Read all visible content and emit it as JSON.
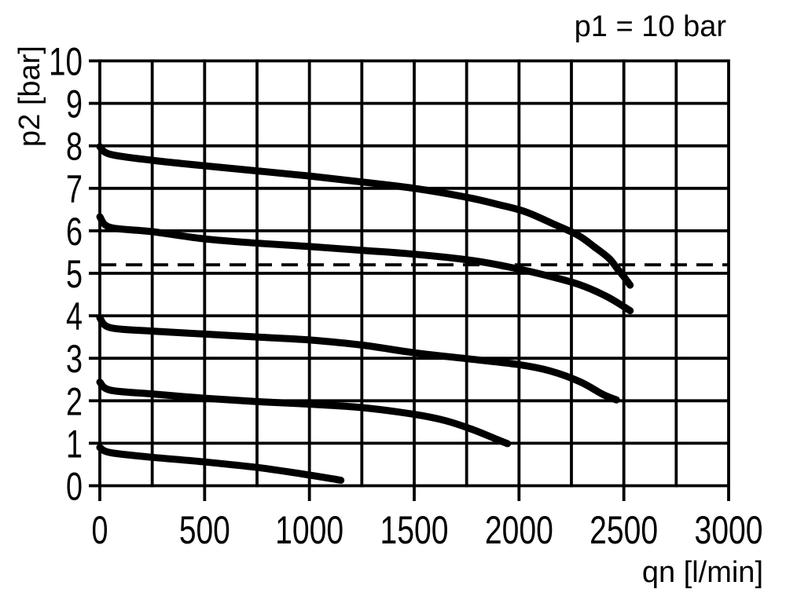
{
  "figure": {
    "background": "#ffffff",
    "ink_color": "#000000"
  },
  "chart_data": {
    "type": "line",
    "title": "p1 = 10 bar",
    "xlabel": "qn [l/min]",
    "ylabel": "p2 [bar]",
    "xlim": [
      0,
      3000
    ],
    "ylim": [
      0,
      10
    ],
    "x_tick_values": [
      0,
      500,
      1000,
      1500,
      2000,
      2500,
      3000
    ],
    "y_tick_values": [
      0,
      1,
      2,
      3,
      4,
      5,
      6,
      7,
      8,
      9,
      10
    ],
    "x_gridline_step": 250,
    "y_gridline_step": 1,
    "grid": "on",
    "legend": "none",
    "curve_color": "#000000",
    "reference_line": {
      "type": "horizontal-dashed",
      "p2_bar": 5.2,
      "x_from": 0,
      "x_to": 3000
    },
    "series": [
      {
        "name": "curve-setting-8-bar",
        "points": [
          [
            0,
            7.98
          ],
          [
            50,
            7.8
          ],
          [
            250,
            7.66
          ],
          [
            500,
            7.53
          ],
          [
            750,
            7.41
          ],
          [
            1000,
            7.29
          ],
          [
            1250,
            7.15
          ],
          [
            1500,
            7.0
          ],
          [
            1750,
            6.79
          ],
          [
            1900,
            6.62
          ],
          [
            2030,
            6.45
          ],
          [
            2160,
            6.17
          ],
          [
            2280,
            5.9
          ],
          [
            2360,
            5.62
          ],
          [
            2430,
            5.35
          ],
          [
            2470,
            5.1
          ],
          [
            2500,
            4.92
          ],
          [
            2530,
            4.72
          ]
        ]
      },
      {
        "name": "curve-setting-6-bar",
        "points": [
          [
            0,
            6.33
          ],
          [
            50,
            6.08
          ],
          [
            250,
            5.98
          ],
          [
            500,
            5.81
          ],
          [
            750,
            5.71
          ],
          [
            1000,
            5.63
          ],
          [
            1250,
            5.54
          ],
          [
            1500,
            5.45
          ],
          [
            1780,
            5.3
          ],
          [
            1980,
            5.12
          ],
          [
            2130,
            4.95
          ],
          [
            2290,
            4.73
          ],
          [
            2420,
            4.45
          ],
          [
            2530,
            4.12
          ]
        ]
      },
      {
        "name": "curve-setting-4-bar",
        "points": [
          [
            0,
            3.95
          ],
          [
            50,
            3.72
          ],
          [
            250,
            3.64
          ],
          [
            500,
            3.57
          ],
          [
            750,
            3.5
          ],
          [
            1000,
            3.43
          ],
          [
            1250,
            3.31
          ],
          [
            1500,
            3.13
          ],
          [
            1750,
            2.99
          ],
          [
            2000,
            2.85
          ],
          [
            2150,
            2.7
          ],
          [
            2290,
            2.45
          ],
          [
            2400,
            2.15
          ],
          [
            2465,
            2.02
          ]
        ]
      },
      {
        "name": "curve-setting-2.5-bar",
        "points": [
          [
            0,
            2.44
          ],
          [
            50,
            2.25
          ],
          [
            250,
            2.16
          ],
          [
            500,
            2.06
          ],
          [
            750,
            1.98
          ],
          [
            1000,
            1.92
          ],
          [
            1250,
            1.84
          ],
          [
            1500,
            1.68
          ],
          [
            1650,
            1.53
          ],
          [
            1780,
            1.32
          ],
          [
            1880,
            1.12
          ],
          [
            1945,
            0.99
          ]
        ]
      },
      {
        "name": "curve-setting-1-bar",
        "points": [
          [
            0,
            0.9
          ],
          [
            50,
            0.78
          ],
          [
            250,
            0.67
          ],
          [
            500,
            0.56
          ],
          [
            750,
            0.43
          ],
          [
            950,
            0.29
          ],
          [
            1090,
            0.18
          ],
          [
            1150,
            0.13
          ]
        ]
      }
    ]
  }
}
